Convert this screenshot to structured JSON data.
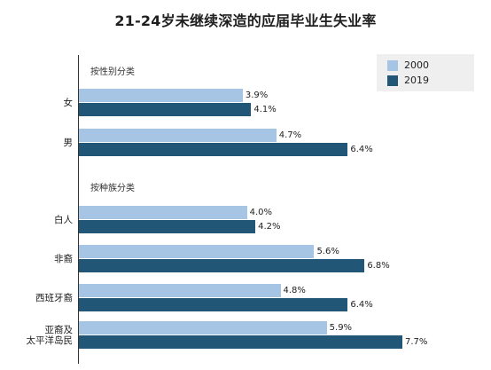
{
  "chart_data": {
    "type": "bar",
    "orientation": "horizontal",
    "title": "21-24岁未继续深造的应届毕业生失业率",
    "xlim": [
      0,
      8.0
    ],
    "legend_position": "top-right",
    "series": [
      {
        "name": "2000",
        "color": "#a6c4e3"
      },
      {
        "name": "2019",
        "color": "#225677"
      }
    ],
    "groups": [
      {
        "label": "按性别分类",
        "categories": [
          {
            "label": "女",
            "values": [
              3.9,
              4.1
            ],
            "value_labels": [
              "3.9%",
              "4.1%"
            ]
          },
          {
            "label": "男",
            "values": [
              4.7,
              6.4
            ],
            "value_labels": [
              "4.7%",
              "6.4%"
            ]
          }
        ]
      },
      {
        "label": "按种族分类",
        "categories": [
          {
            "label": "白人",
            "values": [
              4.0,
              4.2
            ],
            "value_labels": [
              "4.0%",
              "4.2%"
            ]
          },
          {
            "label": "非裔",
            "values": [
              5.6,
              6.8
            ],
            "value_labels": [
              "5.6%",
              "6.8%"
            ]
          },
          {
            "label": "西班牙裔",
            "values": [
              4.8,
              6.4
            ],
            "value_labels": [
              "4.8%",
              "6.4%"
            ]
          },
          {
            "label": "亚裔及\n太平洋岛民",
            "values": [
              5.9,
              7.7
            ],
            "value_labels": [
              "5.9%",
              "7.7%"
            ]
          }
        ]
      }
    ]
  }
}
